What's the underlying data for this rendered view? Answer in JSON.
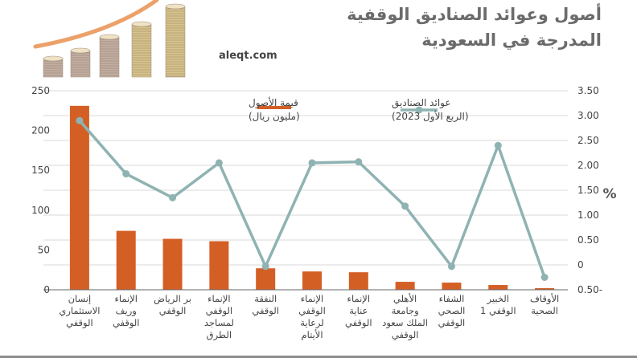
{
  "header": {
    "title_line1": "أصول وعوائد الصناديق الوقفية",
    "title_line2": "المدرجة في السعودية",
    "site": "aleqt.com"
  },
  "colors": {
    "bar": "#d35f25",
    "line": "#8fb3b2",
    "grid": "#d9d9d9",
    "text": "#444444"
  },
  "chart_data": {
    "type": "bar",
    "categories": [
      "إنسان الاستثماري الوقفي",
      "الإنماء وريف الوقفي",
      "بر الرياض الوقفي",
      "الإنماء الوقفي لمساجد الطرق",
      "النفقة الوقفي",
      "الإنماء الوقفي لرعاية الأيتام",
      "الإنماء عناية الوقفي",
      "الأهلي وجامعة الملك سعود الوقفي",
      "الشفاء الصحي الوقفي",
      "الخبير الوقفي 1",
      "الأوقاف الصحية"
    ],
    "category_lines": [
      [
        "إنسان",
        "الاستثماري",
        "الوقفي"
      ],
      [
        "الإنماء",
        "وريف",
        "الوقفي"
      ],
      [
        "بر الرياض",
        "الوقفي"
      ],
      [
        "الإنماء",
        "الوقفي",
        "لمساجد",
        "الطرق"
      ],
      [
        "النفقة",
        "الوقفي"
      ],
      [
        "الإنماء",
        "الوقفي",
        "لرعاية",
        "الأيتام"
      ],
      [
        "الإنماء",
        "عناية",
        "الوقفي"
      ],
      [
        "الأهلي",
        "وجامعة",
        "الملك سعود",
        "الوقفي"
      ],
      [
        "الشفاء",
        "الصحي",
        "الوقفي"
      ],
      [
        "الخبير",
        "الوقفي 1"
      ],
      [
        "الأوقاف",
        "الصحية"
      ]
    ],
    "series": [
      {
        "name": "قيمة الأصول",
        "name_sub": "(مليون ريال)",
        "kind": "bar",
        "axis": "left",
        "values": [
          231,
          74,
          64,
          61,
          27,
          23,
          22,
          10,
          9,
          6,
          2
        ]
      },
      {
        "name": "عوائد الصناديق",
        "name_sub": "(الربع الأول 2023)",
        "kind": "line",
        "axis": "right",
        "values": [
          2.9,
          1.83,
          1.35,
          2.05,
          -0.03,
          2.05,
          2.07,
          1.18,
          -0.03,
          2.4,
          -0.25
        ]
      }
    ],
    "left_axis": {
      "ylim": [
        0,
        250
      ],
      "ticks": [
        0,
        50,
        100,
        150,
        200,
        250
      ],
      "tick_labels": [
        "0",
        "50",
        "100",
        "150",
        "200",
        "250"
      ]
    },
    "right_axis": {
      "ylim": [
        -0.5,
        3.5
      ],
      "ticks": [
        -0.5,
        0,
        0.5,
        1,
        1.5,
        2,
        2.5,
        3,
        3.5
      ],
      "tick_labels": [
        "0.50-",
        "0",
        "0.50",
        "1.00",
        "1.50",
        "2.00",
        "2.50",
        "3.00",
        "3.50"
      ],
      "unit_label": "%"
    },
    "grid": true,
    "legend": "top"
  }
}
